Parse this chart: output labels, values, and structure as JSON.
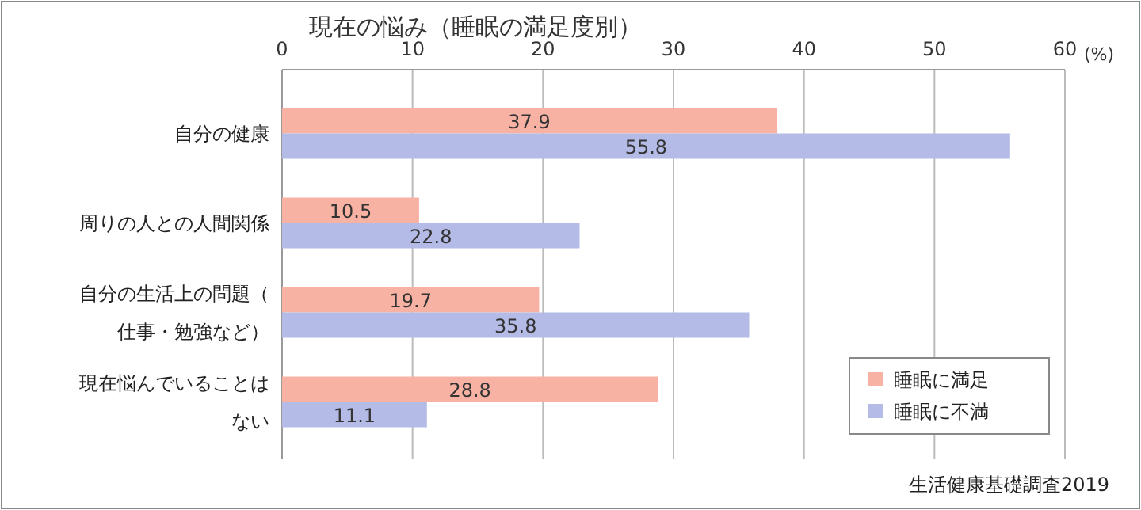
{
  "chart_data": {
    "type": "bar",
    "orientation": "horizontal",
    "title": "現在の悩み（睡眠の満足度別）",
    "xlabel": "(%)",
    "categories": [
      "自分の健康",
      "周りの人との人間関係",
      "自分の生活上の問題（仕事・勉強など）",
      "現在悩んでいることはない"
    ],
    "series": [
      {
        "name": "睡眠に満足",
        "color": "#f8b2a4",
        "values": [
          37.9,
          10.5,
          19.7,
          28.8
        ]
      },
      {
        "name": "睡眠に不満",
        "color": "#b4bbe6",
        "values": [
          55.8,
          22.8,
          35.8,
          11.1
        ]
      }
    ],
    "xlim": [
      0,
      60
    ],
    "xticks": [
      0,
      10,
      20,
      30,
      40,
      50,
      60
    ],
    "grid": "x",
    "legend": "bottom right",
    "data_labels": true,
    "annotations": [
      "生活健康基礎調査2019"
    ]
  }
}
